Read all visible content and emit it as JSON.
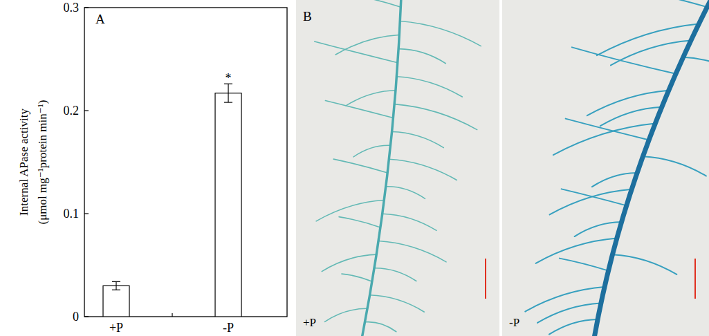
{
  "chart_data": {
    "type": "bar",
    "panel": "A",
    "y_label": [
      "Internal APase activity",
      "(μmol mg⁻¹protein min⁻¹)"
    ],
    "categories": [
      "+P",
      "-P"
    ],
    "values": [
      0.03,
      0.217
    ],
    "errors": [
      0.004,
      0.009
    ],
    "color": "#ffffff",
    "annotations": [
      {
        "text": "*",
        "category": "-P"
      }
    ],
    "ylim": [
      0,
      0.3
    ],
    "yticks": [
      0,
      0.1,
      0.2,
      0.3
    ],
    "grid": false
  },
  "image_panels": {
    "letter": "B",
    "labels": [
      "+P",
      "-P"
    ]
  }
}
